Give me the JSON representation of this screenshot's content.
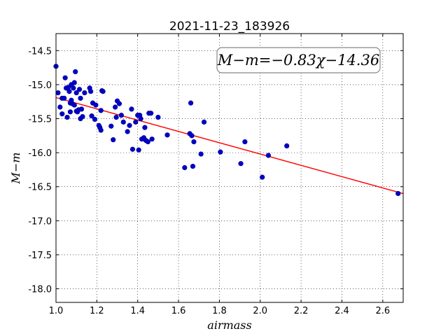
{
  "chart_data": {
    "type": "scatter",
    "title": "2021-11-23_183926",
    "xlabel": "airmass",
    "ylabel": "M−m",
    "xlim": [
      1.0,
      2.7
    ],
    "ylim": [
      -18.2,
      -14.25
    ],
    "xticks": [
      "1.0",
      "1.2",
      "1.4",
      "1.6",
      "1.8",
      "2.0",
      "2.2",
      "2.4",
      "2.6"
    ],
    "yticks": [
      "-14.5",
      "-15.0",
      "-15.5",
      "-16.0",
      "-16.5",
      "-17.0",
      "-17.5",
      "-18.0"
    ],
    "grid": true,
    "marker_color": "#0000cc",
    "line_color": "#ff0000",
    "annotation": "M−m=−0.83χ−14.36",
    "fit": {
      "slope": -0.83,
      "intercept": -14.36
    },
    "points": [
      [
        1.0,
        -14.73
      ],
      [
        1.01,
        -15.12
      ],
      [
        1.02,
        -15.33
      ],
      [
        1.03,
        -15.2
      ],
      [
        1.03,
        -15.43
      ],
      [
        1.04,
        -15.2
      ],
      [
        1.045,
        -14.9
      ],
      [
        1.05,
        -15.05
      ],
      [
        1.055,
        -15.48
      ],
      [
        1.06,
        -15.04
      ],
      [
        1.065,
        -15.1
      ],
      [
        1.07,
        -15.27
      ],
      [
        1.07,
        -15.4
      ],
      [
        1.075,
        -15.0
      ],
      [
        1.075,
        -15.23
      ],
      [
        1.08,
        -15.28
      ],
      [
        1.085,
        -15.05
      ],
      [
        1.09,
        -14.97
      ],
      [
        1.09,
        -15.3
      ],
      [
        1.095,
        -14.81
      ],
      [
        1.1,
        -15.12
      ],
      [
        1.1,
        -15.39
      ],
      [
        1.105,
        -15.4
      ],
      [
        1.11,
        -15.37
      ],
      [
        1.115,
        -15.07
      ],
      [
        1.12,
        -15.5
      ],
      [
        1.12,
        -15.2
      ],
      [
        1.125,
        -15.36
      ],
      [
        1.13,
        -15.47
      ],
      [
        1.14,
        -15.12
      ],
      [
        1.165,
        -15.05
      ],
      [
        1.17,
        -15.1
      ],
      [
        1.175,
        -15.46
      ],
      [
        1.18,
        -15.27
      ],
      [
        1.19,
        -15.51
      ],
      [
        1.195,
        -15.3
      ],
      [
        1.21,
        -15.6
      ],
      [
        1.215,
        -15.63
      ],
      [
        1.22,
        -15.67
      ],
      [
        1.225,
        -15.09
      ],
      [
        1.23,
        -15.1
      ],
      [
        1.22,
        -15.38
      ],
      [
        1.27,
        -15.61
      ],
      [
        1.28,
        -15.81
      ],
      [
        1.29,
        -15.33
      ],
      [
        1.295,
        -15.48
      ],
      [
        1.3,
        -15.24
      ],
      [
        1.31,
        -15.28
      ],
      [
        1.32,
        -15.45
      ],
      [
        1.33,
        -15.55
      ],
      [
        1.35,
        -15.69
      ],
      [
        1.36,
        -15.6
      ],
      [
        1.37,
        -15.36
      ],
      [
        1.375,
        -15.95
      ],
      [
        1.39,
        -15.55
      ],
      [
        1.4,
        -15.45
      ],
      [
        1.405,
        -15.96
      ],
      [
        1.41,
        -15.45
      ],
      [
        1.415,
        -15.5
      ],
      [
        1.42,
        -15.8
      ],
      [
        1.43,
        -15.78
      ],
      [
        1.435,
        -15.63
      ],
      [
        1.44,
        -15.82
      ],
      [
        1.45,
        -15.84
      ],
      [
        1.455,
        -15.42
      ],
      [
        1.465,
        -15.42
      ],
      [
        1.47,
        -15.8
      ],
      [
        1.5,
        -15.48
      ],
      [
        1.545,
        -15.74
      ],
      [
        1.63,
        -16.22
      ],
      [
        1.655,
        -15.72
      ],
      [
        1.66,
        -15.27
      ],
      [
        1.665,
        -15.75
      ],
      [
        1.67,
        -16.2
      ],
      [
        1.675,
        -15.84
      ],
      [
        1.71,
        -16.02
      ],
      [
        1.725,
        -15.55
      ],
      [
        1.805,
        -15.99
      ],
      [
        1.905,
        -16.16
      ],
      [
        1.925,
        -15.84
      ],
      [
        2.01,
        -16.36
      ],
      [
        2.04,
        -16.04
      ],
      [
        2.13,
        -15.9
      ],
      [
        2.675,
        -16.6
      ]
    ]
  }
}
